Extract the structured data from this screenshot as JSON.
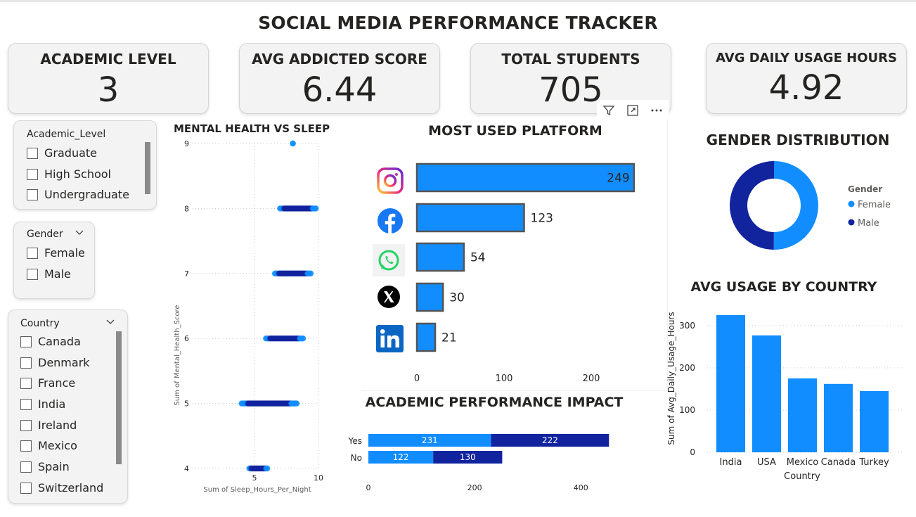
{
  "title": "SOCIAL MEDIA PERFORMANCE TRACKER",
  "kpis": [
    {
      "label": "ACADEMIC LEVEL",
      "value": "3"
    },
    {
      "label": "AVG ADDICTED SCORE",
      "value": "6.44"
    },
    {
      "label": "TOTAL STUDENTS",
      "value": "705"
    },
    {
      "label": "AVG DAILY USAGE HOURS",
      "value": "4.92"
    }
  ],
  "slicers": {
    "academic": {
      "header": "Academic_Level",
      "items": [
        "Graduate",
        "High School",
        "Undergraduate"
      ]
    },
    "gender": {
      "header": "Gender",
      "items": [
        "Female",
        "Male"
      ]
    },
    "country": {
      "header": "Country",
      "items": [
        "Canada",
        "Denmark",
        "France",
        "India",
        "Ireland",
        "Mexico",
        "Spain",
        "Switzerland"
      ]
    }
  },
  "toolbar": {
    "icons": [
      "filter-icon",
      "focus-mode-icon",
      "more-options-icon"
    ]
  },
  "colors": {
    "primary": "#118DFF",
    "dark": "#12239E",
    "light": "#3A9BF0"
  },
  "chart_data": [
    {
      "type": "scatter",
      "title": "MENTAL HEALTH VS SLEEP",
      "xlabel": "Sum of Sleep_Hours_Per_Night",
      "ylabel": "Sum of Mental_Health_Score",
      "xlim": [
        3.3,
        10
      ],
      "ylim": [
        4,
        9
      ],
      "xticks": [
        "5",
        "10"
      ],
      "yticks": [
        "4",
        "5",
        "6",
        "7",
        "8",
        "9"
      ],
      "grid": true,
      "bands": [
        {
          "y": 9,
          "x_min": 8.0,
          "x_max": 8.0
        },
        {
          "y": 8,
          "x_min": 7.0,
          "x_max": 9.8
        },
        {
          "y": 7,
          "x_min": 6.6,
          "x_max": 9.4
        },
        {
          "y": 6,
          "x_min": 5.9,
          "x_max": 8.8
        },
        {
          "y": 5,
          "x_min": 4.0,
          "x_max": 8.3
        },
        {
          "y": 4,
          "x_min": 4.6,
          "x_max": 6.0
        }
      ]
    },
    {
      "type": "bar",
      "orientation": "horizontal",
      "title": "MOST USED PLATFORM",
      "categories": [
        "Instagram",
        "Facebook",
        "WhatsApp",
        "X",
        "LinkedIn"
      ],
      "values": [
        249,
        123,
        54,
        30,
        21
      ],
      "value_labels": [
        "249",
        "123",
        "54",
        "30",
        "21"
      ],
      "xlim": [
        0,
        250
      ],
      "xticks": [
        "0",
        "100",
        "200"
      ]
    },
    {
      "type": "pie",
      "donut": true,
      "title": "GENDER DISTRIBUTION",
      "legend_title": "Gender",
      "legend_position": "right",
      "slices": [
        {
          "label": "Female",
          "value": 353,
          "color": "#118DFF"
        },
        {
          "label": "Male",
          "value": 352,
          "color": "#12239E"
        }
      ]
    },
    {
      "type": "bar",
      "orientation": "horizontal",
      "stacked": true,
      "title": "ACADEMIC PERFORMANCE IMPACT",
      "categories": [
        "Yes",
        "No"
      ],
      "series": [
        {
          "values": [
            231,
            122
          ],
          "value_labels": [
            "231",
            "122"
          ],
          "color": "#118DFF"
        },
        {
          "values": [
            222,
            130
          ],
          "value_labels": [
            "222",
            "130"
          ],
          "color": "#12239E"
        }
      ],
      "xlim": [
        0,
        450
      ],
      "xticks": [
        "0",
        "200",
        "400"
      ]
    },
    {
      "type": "bar",
      "title": "AVG USAGE BY COUNTRY",
      "categories": [
        "India",
        "USA",
        "Mexico",
        "Canada",
        "Turkey"
      ],
      "values": [
        325,
        277,
        175,
        162,
        145
      ],
      "xlabel": "Country",
      "ylabel": "Sum of Avg_Daily_Usage_Hours",
      "ylim": [
        0,
        350
      ],
      "yticks": [
        "0",
        "100",
        "200",
        "300"
      ],
      "grid": true
    }
  ]
}
